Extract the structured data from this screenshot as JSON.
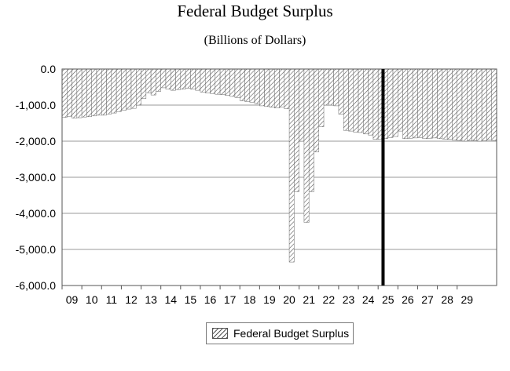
{
  "chart_data": {
    "type": "bar",
    "title": "Federal Budget Surplus",
    "subtitle": "(Billions of Dollars)",
    "xlabel": "",
    "ylabel": "",
    "ylim": [
      -6000,
      0
    ],
    "yticks": [
      "0.0",
      "-1,000.0",
      "-2,000.0",
      "-3,000.0",
      "-4,000.0",
      "-5,000.0",
      "-6,000.0"
    ],
    "xticks": [
      "09",
      "10",
      "11",
      "12",
      "13",
      "14",
      "15",
      "16",
      "17",
      "18",
      "19",
      "20",
      "21",
      "22",
      "23",
      "24",
      "25",
      "26",
      "27",
      "28",
      "29"
    ],
    "grid": "horizontal",
    "legend_position": "bottom-center",
    "vertical_marker_x": "2025 Q2",
    "series": [
      {
        "name": "Federal Budget Surplus",
        "frequency": "quarterly",
        "start": "2009 Q1",
        "values": [
          -1340,
          -1310,
          -1360,
          -1350,
          -1330,
          -1320,
          -1300,
          -1280,
          -1280,
          -1250,
          -1220,
          -1180,
          -1140,
          -1110,
          -1090,
          -1000,
          -820,
          -660,
          -720,
          -620,
          -520,
          -560,
          -590,
          -570,
          -560,
          -530,
          -560,
          -590,
          -640,
          -660,
          -680,
          -700,
          -710,
          -730,
          -760,
          -790,
          -880,
          -900,
          -920,
          -960,
          -1020,
          -1040,
          -1060,
          -1080,
          -1060,
          -1100,
          -5350,
          -3400,
          -2000,
          -4250,
          -3400,
          -2300,
          -1600,
          -1000,
          -1000,
          -1020,
          -1250,
          -1700,
          -1720,
          -1750,
          -1760,
          -1800,
          -1830,
          -1950,
          -1940,
          -1930,
          -1900,
          -1870,
          -1720,
          -1930,
          -1920,
          -1910,
          -1900,
          -1930,
          -1920,
          -1910,
          -1930,
          -1940,
          -1950,
          -1970,
          -1980,
          -2000,
          -1990,
          -1980,
          -2000,
          -1990,
          -1960,
          -1980
        ]
      }
    ]
  }
}
